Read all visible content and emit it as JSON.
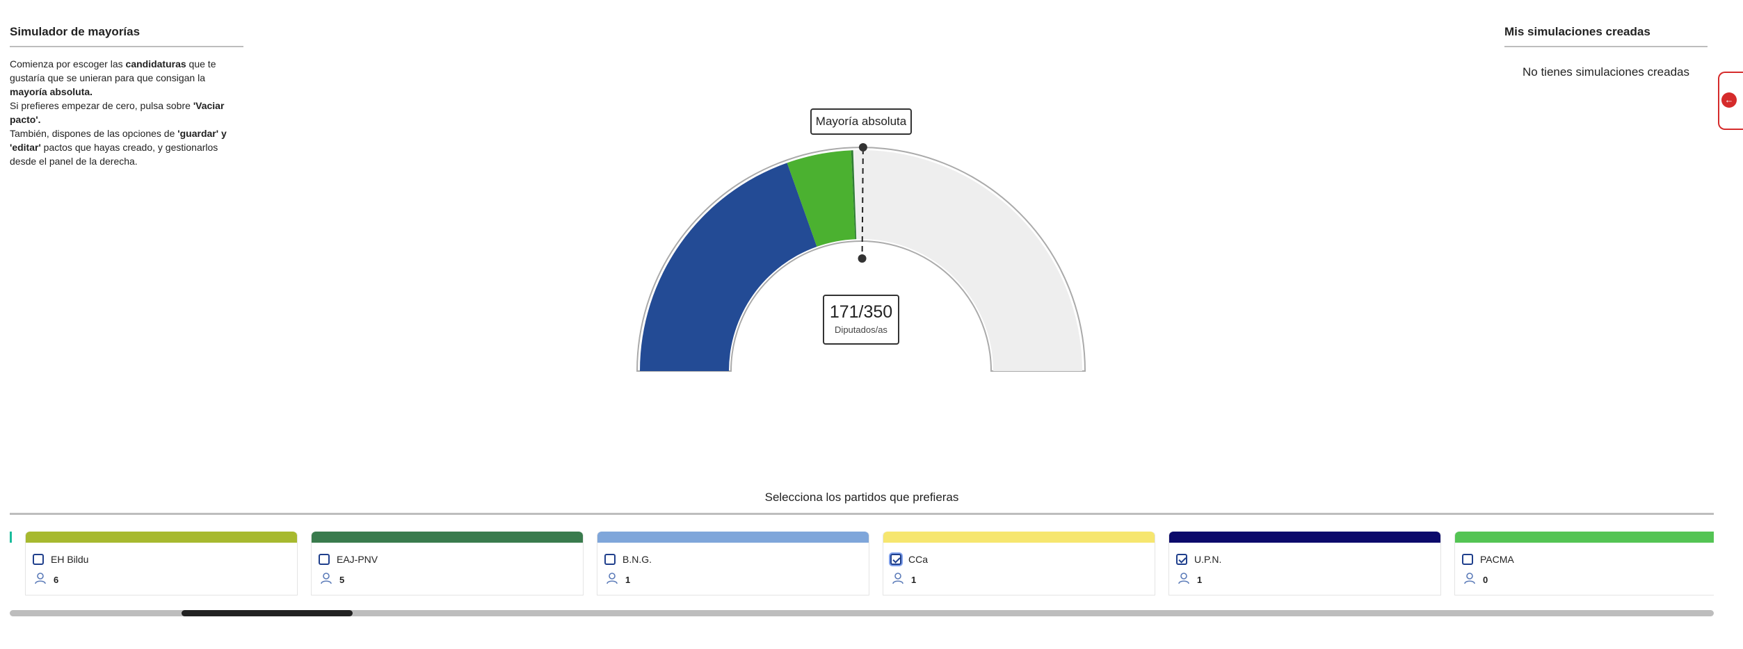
{
  "left_panel": {
    "title": "Simulador de mayorías",
    "intro_parts": [
      {
        "t": "Comienza por escoger las ",
        "b": false
      },
      {
        "t": "candidaturas",
        "b": true
      },
      {
        "t": " que te gustaría que se unieran para que consigan la ",
        "b": false
      },
      {
        "t": "mayoría absoluta.",
        "b": true
      },
      {
        "t": "BR"
      },
      {
        "t": "Si prefieres empezar de cero, pulsa sobre ",
        "b": false
      },
      {
        "t": "'Vaciar pacto'.",
        "b": true
      },
      {
        "t": "BR"
      },
      {
        "t": "También, dispones de las opciones de ",
        "b": false
      },
      {
        "t": "'guardar' y 'editar'",
        "b": true
      },
      {
        "t": " pactos que hayas creado, y gestionarlos desde el panel de la derecha.",
        "b": false
      }
    ]
  },
  "right_panel": {
    "title": "Mis simulaciones creadas",
    "empty_message": "No tienes simulaciones creadas",
    "toggle_icon": "arrow-left-icon",
    "toggle_glyph": "←"
  },
  "gauge": {
    "majority_label": "Mayoría absoluta",
    "seats_value": "171/350",
    "seats_label": "Diputados/as",
    "total_seats": 350,
    "majority_seats": 176,
    "segments": [
      {
        "seats": 137,
        "color": "#234b95"
      },
      {
        "seats": 33,
        "color": "#4bb130"
      },
      {
        "seats": 1,
        "color": "#2e7d32"
      }
    ],
    "empty_color": "#eeeeee"
  },
  "selector": {
    "title": "Selecciona los partidos que prefieras",
    "edge_stub_color": "#1abc9c",
    "parties": [
      {
        "name": "EH Bildu",
        "seats": "6",
        "color": "#a7b92f",
        "checked": false,
        "focused": false
      },
      {
        "name": "EAJ-PNV",
        "seats": "5",
        "color": "#397b4d",
        "checked": false,
        "focused": false
      },
      {
        "name": "B.N.G.",
        "seats": "1",
        "color": "#7fa6da",
        "checked": false,
        "focused": false
      },
      {
        "name": "CCa",
        "seats": "1",
        "color": "#f6e66f",
        "checked": true,
        "focused": true
      },
      {
        "name": "U.P.N.",
        "seats": "1",
        "color": "#0c0a6b",
        "checked": true,
        "focused": false
      },
      {
        "name": "PACMA",
        "seats": "0",
        "color": "#54c454",
        "checked": false,
        "focused": false
      }
    ],
    "user_icon": "user-icon",
    "scroll_position": 0.1
  }
}
